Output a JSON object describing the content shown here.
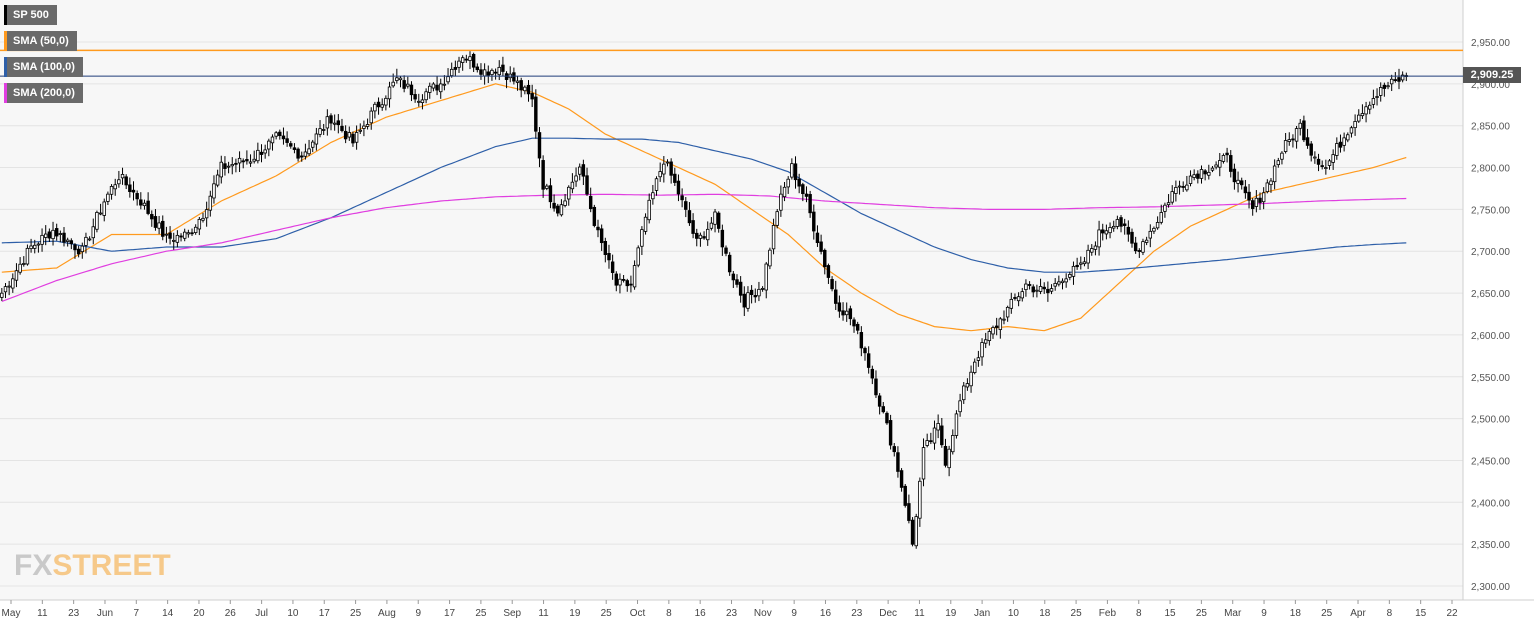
{
  "legend": [
    {
      "label": "SP 500",
      "color": "#000000"
    },
    {
      "label": "SMA (50,0)",
      "color": "#ff9a1e"
    },
    {
      "label": "SMA (100,0)",
      "color": "#2e5fa8"
    },
    {
      "label": "SMA (200,0)",
      "color": "#e03ee0"
    }
  ],
  "last_price_label": "2,909.25",
  "watermark": {
    "fx": "FX",
    "street": "STREET"
  },
  "colors": {
    "background": "#f7f7f7",
    "grid": "#e4e4e4",
    "candle_up_fill": "#ffffff",
    "candle_down_fill": "#000000",
    "resistance": "#ff9a1e",
    "last_price_line": "#1f3d7a"
  },
  "chart_data": {
    "type": "candlestick",
    "symbol": "SP 500",
    "y_ticks": [
      2950,
      2900,
      2850,
      2800,
      2750,
      2700,
      2650,
      2600,
      2550,
      2500,
      2450,
      2400,
      2350,
      2300
    ],
    "y_tick_labels": [
      "2,950.00",
      "2,900.00",
      "2,850.00",
      "2,800.00",
      "2,750.00",
      "2,700.00",
      "2,650.00",
      "2,600.00",
      "2,550.00",
      "2,500.00",
      "2,450.00",
      "2,400.00",
      "2,350.00",
      "2,300.00"
    ],
    "ylim": [
      2280,
      2980
    ],
    "x_axis_labels": [
      "May",
      "11",
      "23",
      "Jun",
      "7",
      "14",
      "20",
      "26",
      "Jul",
      "10",
      "17",
      "25",
      "Aug",
      "9",
      "17",
      "25",
      "Sep",
      "11",
      "19",
      "25",
      "Oct",
      "8",
      "16",
      "23",
      "Nov",
      "9",
      "16",
      "23",
      "Dec",
      "11",
      "19",
      "Jan",
      "10",
      "18",
      "25",
      "Feb",
      "8",
      "15",
      "25",
      "Mar",
      "9",
      "18",
      "25",
      "Apr",
      "8",
      "15",
      "22"
    ],
    "horizontal_lines": {
      "resistance": 2940,
      "last_price": 2909.25
    },
    "anchors": [
      [
        0,
        2650
      ],
      [
        8,
        2705
      ],
      [
        14,
        2725
      ],
      [
        22,
        2700
      ],
      [
        28,
        2760
      ],
      [
        32,
        2790
      ],
      [
        38,
        2760
      ],
      [
        45,
        2715
      ],
      [
        51,
        2720
      ],
      [
        55,
        2745
      ],
      [
        60,
        2800
      ],
      [
        68,
        2810
      ],
      [
        75,
        2835
      ],
      [
        82,
        2815
      ],
      [
        90,
        2860
      ],
      [
        96,
        2830
      ],
      [
        102,
        2870
      ],
      [
        108,
        2905
      ],
      [
        114,
        2885
      ],
      [
        120,
        2900
      ],
      [
        126,
        2935
      ],
      [
        132,
        2915
      ],
      [
        136,
        2920
      ],
      [
        141,
        2900
      ],
      [
        145,
        2880
      ],
      [
        148,
        2780
      ],
      [
        152,
        2750
      ],
      [
        158,
        2800
      ],
      [
        163,
        2720
      ],
      [
        168,
        2660
      ],
      [
        172,
        2660
      ],
      [
        176,
        2740
      ],
      [
        181,
        2810
      ],
      [
        185,
        2770
      ],
      [
        190,
        2710
      ],
      [
        195,
        2740
      ],
      [
        199,
        2680
      ],
      [
        203,
        2640
      ],
      [
        208,
        2660
      ],
      [
        212,
        2750
      ],
      [
        216,
        2800
      ],
      [
        220,
        2760
      ],
      [
        224,
        2700
      ],
      [
        228,
        2640
      ],
      [
        232,
        2620
      ],
      [
        236,
        2580
      ],
      [
        240,
        2520
      ],
      [
        244,
        2460
      ],
      [
        247,
        2400
      ],
      [
        249,
        2350
      ],
      [
        252,
        2460
      ],
      [
        256,
        2490
      ],
      [
        258,
        2450
      ],
      [
        262,
        2520
      ],
      [
        266,
        2570
      ],
      [
        270,
        2600
      ],
      [
        275,
        2630
      ],
      [
        280,
        2660
      ],
      [
        286,
        2650
      ],
      [
        290,
        2670
      ],
      [
        295,
        2680
      ],
      [
        300,
        2720
      ],
      [
        305,
        2740
      ],
      [
        310,
        2700
      ],
      [
        315,
        2730
      ],
      [
        320,
        2770
      ],
      [
        325,
        2790
      ],
      [
        330,
        2800
      ],
      [
        335,
        2810
      ],
      [
        338,
        2780
      ],
      [
        342,
        2750
      ],
      [
        346,
        2780
      ],
      [
        350,
        2820
      ],
      [
        355,
        2850
      ],
      [
        358,
        2820
      ],
      [
        362,
        2800
      ],
      [
        366,
        2830
      ],
      [
        370,
        2860
      ],
      [
        374,
        2880
      ],
      [
        378,
        2895
      ],
      [
        382,
        2905
      ],
      [
        384,
        2909.25
      ]
    ],
    "sma50": [
      [
        0,
        2675
      ],
      [
        15,
        2680
      ],
      [
        30,
        2720
      ],
      [
        45,
        2720
      ],
      [
        60,
        2760
      ],
      [
        75,
        2790
      ],
      [
        90,
        2830
      ],
      [
        105,
        2860
      ],
      [
        120,
        2880
      ],
      [
        135,
        2900
      ],
      [
        145,
        2890
      ],
      [
        155,
        2870
      ],
      [
        165,
        2840
      ],
      [
        175,
        2820
      ],
      [
        185,
        2800
      ],
      [
        195,
        2780
      ],
      [
        205,
        2750
      ],
      [
        215,
        2720
      ],
      [
        225,
        2680
      ],
      [
        235,
        2650
      ],
      [
        245,
        2625
      ],
      [
        255,
        2610
      ],
      [
        265,
        2605
      ],
      [
        275,
        2610
      ],
      [
        285,
        2605
      ],
      [
        295,
        2620
      ],
      [
        305,
        2660
      ],
      [
        315,
        2700
      ],
      [
        325,
        2730
      ],
      [
        335,
        2750
      ],
      [
        345,
        2770
      ],
      [
        355,
        2780
      ],
      [
        365,
        2790
      ],
      [
        375,
        2800
      ],
      [
        384,
        2812
      ]
    ],
    "sma100": [
      [
        0,
        2710
      ],
      [
        15,
        2712
      ],
      [
        30,
        2700
      ],
      [
        45,
        2705
      ],
      [
        60,
        2705
      ],
      [
        75,
        2715
      ],
      [
        90,
        2740
      ],
      [
        105,
        2770
      ],
      [
        120,
        2800
      ],
      [
        135,
        2825
      ],
      [
        145,
        2835
      ],
      [
        155,
        2835
      ],
      [
        165,
        2834
      ],
      [
        175,
        2834
      ],
      [
        185,
        2830
      ],
      [
        195,
        2820
      ],
      [
        205,
        2810
      ],
      [
        215,
        2795
      ],
      [
        225,
        2770
      ],
      [
        235,
        2745
      ],
      [
        245,
        2725
      ],
      [
        255,
        2705
      ],
      [
        265,
        2690
      ],
      [
        275,
        2680
      ],
      [
        285,
        2675
      ],
      [
        295,
        2675
      ],
      [
        305,
        2678
      ],
      [
        315,
        2682
      ],
      [
        325,
        2686
      ],
      [
        335,
        2690
      ],
      [
        345,
        2695
      ],
      [
        355,
        2700
      ],
      [
        365,
        2705
      ],
      [
        375,
        2708
      ],
      [
        384,
        2710
      ]
    ],
    "sma200": [
      [
        0,
        2640
      ],
      [
        15,
        2665
      ],
      [
        30,
        2685
      ],
      [
        45,
        2700
      ],
      [
        60,
        2710
      ],
      [
        75,
        2725
      ],
      [
        90,
        2740
      ],
      [
        105,
        2752
      ],
      [
        120,
        2760
      ],
      [
        135,
        2765
      ],
      [
        150,
        2767
      ],
      [
        165,
        2768
      ],
      [
        180,
        2767
      ],
      [
        195,
        2768
      ],
      [
        210,
        2766
      ],
      [
        225,
        2760
      ],
      [
        240,
        2756
      ],
      [
        255,
        2752
      ],
      [
        270,
        2750
      ],
      [
        285,
        2750
      ],
      [
        300,
        2752
      ],
      [
        315,
        2753
      ],
      [
        330,
        2755
      ],
      [
        345,
        2757
      ],
      [
        360,
        2760
      ],
      [
        375,
        2762
      ],
      [
        384,
        2763
      ]
    ]
  }
}
